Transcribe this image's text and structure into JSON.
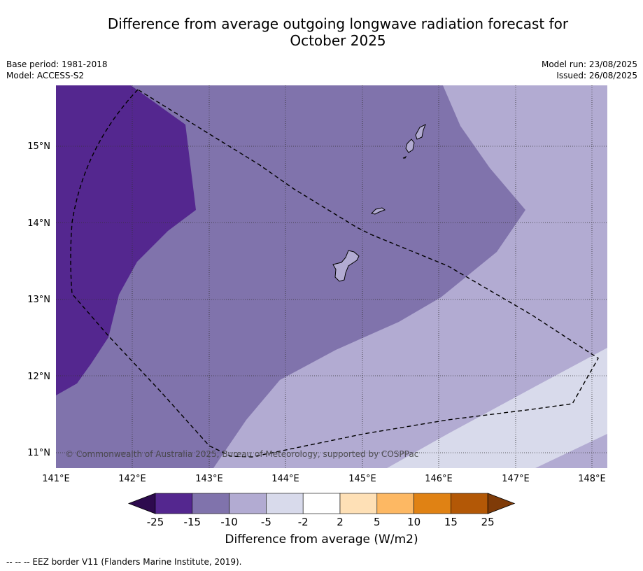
{
  "title_line1": "Difference from average outgoing longwave radiation forecast for",
  "title_line2": "October 2025",
  "base_period": "Base period: 1981-2018",
  "model": "Model: ACCESS-S2",
  "model_run": "Model run: 23/08/2025",
  "issued": "Issued: 26/08/2025",
  "copyright": "© Commonwealth of Australia 2025, Bureau of Meteorology, supported by COSPPac",
  "lon_labels": [
    "141°E",
    "142°E",
    "143°E",
    "144°E",
    "145°E",
    "146°E",
    "147°E",
    "148°E"
  ],
  "lat_labels": [
    "15°N",
    "14°N",
    "13°N",
    "12°N",
    "11°N"
  ],
  "colorbar": {
    "title": "Difference from average (W/m2)",
    "tick_labels": [
      "-25",
      "-15",
      "-10",
      "-5",
      "-2",
      "2",
      "5",
      "10",
      "15",
      "25"
    ],
    "colors": [
      "#2d0a4e",
      "#54278f",
      "#8073ac",
      "#b2abd2",
      "#d8daeb",
      "#ffffff",
      "#fee0b6",
      "#fdb863",
      "#e08214",
      "#b35806",
      "#7f3b08"
    ]
  },
  "footnote": "--  --  -- EEZ border V11 (Flanders Marine Institute, 2019).",
  "map_legend": {
    "dark_purple": "-25 to -15",
    "medium_purple": "-15 to -10",
    "light_purple": "-10 to -5",
    "pale_lavender": "-5 to -2"
  }
}
